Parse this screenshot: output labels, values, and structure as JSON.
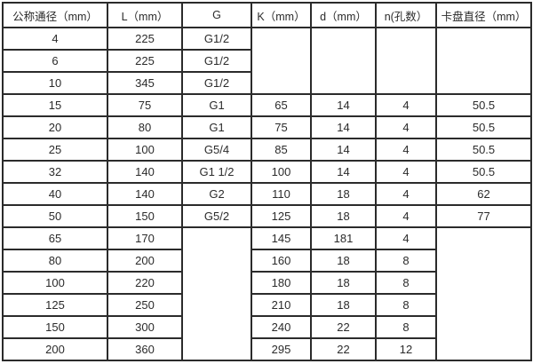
{
  "table": {
    "headers": [
      "公称通径（mm）",
      "L（mm）",
      "G",
      "K（mm）",
      "d（mm）",
      "n(孔数）",
      "卡盘直径（mm）"
    ],
    "rows": [
      {
        "dn": "4",
        "l": "225",
        "g": "G1/2"
      },
      {
        "dn": "6",
        "l": "225",
        "g": "G1/2"
      },
      {
        "dn": "10",
        "l": "345",
        "g": "G1/2"
      },
      {
        "dn": "15",
        "l": "75",
        "g": "G1",
        "k": "65",
        "d": "14",
        "n": "4",
        "chuck": "50.5"
      },
      {
        "dn": "20",
        "l": "80",
        "g": "G1",
        "k": "75",
        "d": "14",
        "n": "4",
        "chuck": "50.5"
      },
      {
        "dn": "25",
        "l": "100",
        "g": "G5/4",
        "k": "85",
        "d": "14",
        "n": "4",
        "chuck": "50.5"
      },
      {
        "dn": "32",
        "l": "140",
        "g": "G1 1/2",
        "k": "100",
        "d": "14",
        "n": "4",
        "chuck": "50.5"
      },
      {
        "dn": "40",
        "l": "140",
        "g": "G2",
        "k": "110",
        "d": "18",
        "n": "4",
        "chuck": "62"
      },
      {
        "dn": "50",
        "l": "150",
        "g": "G5/2",
        "k": "125",
        "d": "18",
        "n": "4",
        "chuck": "77"
      },
      {
        "dn": "65",
        "l": "170",
        "k": "145",
        "d": "181",
        "n": "4"
      },
      {
        "dn": "80",
        "l": "200",
        "k": "160",
        "d": "18",
        "n": "8"
      },
      {
        "dn": "100",
        "l": "220",
        "k": "180",
        "d": "18",
        "n": "8"
      },
      {
        "dn": "125",
        "l": "250",
        "k": "210",
        "d": "18",
        "n": "8"
      },
      {
        "dn": "150",
        "l": "300",
        "k": "240",
        "d": "22",
        "n": "8"
      },
      {
        "dn": "200",
        "l": "360",
        "k": "295",
        "d": "22",
        "n": "12"
      }
    ]
  }
}
